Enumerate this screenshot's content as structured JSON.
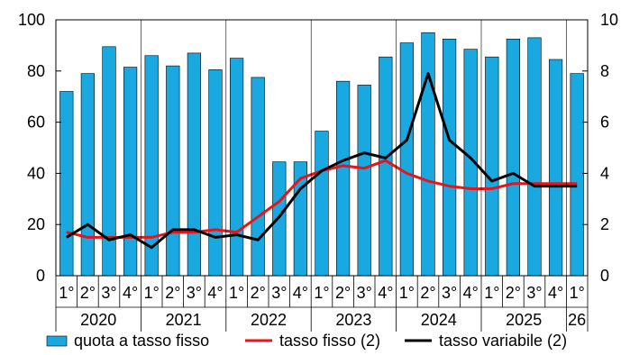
{
  "chart_data": {
    "type": "bar",
    "quarter_labels": [
      "1°",
      "2°",
      "3°",
      "4°",
      "1°",
      "2°",
      "3°",
      "4°",
      "1°",
      "2°",
      "3°",
      "4°",
      "1°",
      "2°",
      "3°",
      "4°",
      "1°",
      "2°",
      "3°",
      "4°",
      "1°",
      "2°",
      "3°",
      "4°",
      "1°"
    ],
    "years": [
      "2020",
      "2021",
      "2022",
      "2023",
      "2024",
      "2025",
      "26"
    ],
    "y_left": {
      "min": 0,
      "max": 100,
      "ticks": [
        "0",
        "20",
        "40",
        "60",
        "80",
        "100"
      ]
    },
    "y_right": {
      "min": 0,
      "max": 10,
      "ticks": [
        "0",
        "2",
        "4",
        "6",
        "8",
        "10"
      ]
    },
    "grid": false,
    "legend_position": "bottom",
    "series": [
      {
        "name": "quota a tasso fisso",
        "type": "bar",
        "axis": "left",
        "color": "#19a8e0",
        "values": [
          72,
          79,
          89.5,
          81.5,
          86,
          82,
          87,
          80.5,
          85,
          77.5,
          44.5,
          44.5,
          56.5,
          76,
          74.5,
          85.5,
          91,
          95,
          92.5,
          88.5,
          85.5,
          92.5,
          93,
          84.5,
          79
        ]
      },
      {
        "name": "tasso fisso (2)",
        "type": "line",
        "axis": "right",
        "color": "#e8141b",
        "values": [
          1.7,
          1.5,
          1.5,
          1.5,
          1.5,
          1.7,
          1.7,
          1.8,
          1.7,
          2.3,
          2.9,
          3.8,
          4.1,
          4.3,
          4.2,
          4.5,
          4.0,
          3.7,
          3.5,
          3.4,
          3.4,
          3.6,
          3.6,
          3.6,
          3.6
        ]
      },
      {
        "name": "tasso variabile (2)",
        "type": "line",
        "axis": "right",
        "color": "#000000",
        "values": [
          1.5,
          2.0,
          1.4,
          1.6,
          1.1,
          1.8,
          1.8,
          1.5,
          1.6,
          1.4,
          2.3,
          3.4,
          4.1,
          4.5,
          4.8,
          4.6,
          5.3,
          7.9,
          5.3,
          4.6,
          3.7,
          4.0,
          3.5,
          3.5,
          3.5
        ]
      }
    ]
  }
}
